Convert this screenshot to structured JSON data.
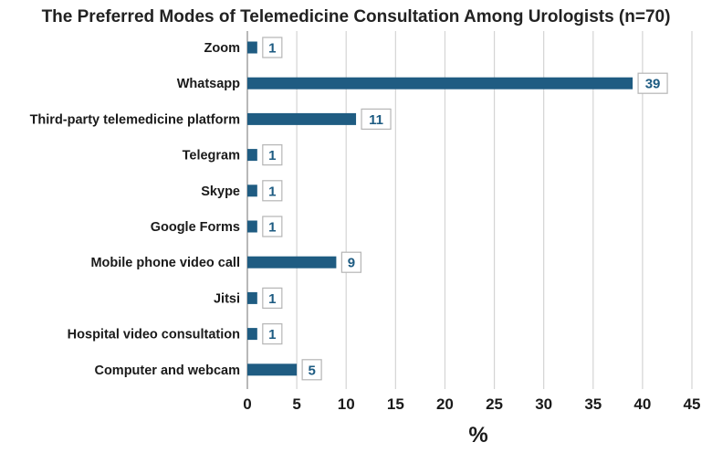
{
  "chart_data": {
    "type": "bar",
    "orientation": "horizontal",
    "title": "The Preferred Modes of Telemedicine Consultation Among Urologists (n=70)",
    "xlabel": "%",
    "ylabel": "",
    "categories": [
      "Zoom",
      "Whatsapp",
      "Third-party telemedicine platform",
      "Telegram",
      "Skype",
      "Google Forms",
      "Mobile phone video call",
      "Jitsi",
      "Hospital video consultation",
      "Computer and webcam"
    ],
    "values": [
      1,
      39,
      11,
      1,
      1,
      1,
      9,
      1,
      1,
      5
    ],
    "data_labels": [
      "1",
      "39",
      "11",
      "1",
      "1",
      "1",
      "9",
      "1",
      "1",
      "5"
    ],
    "xlim": [
      0,
      45
    ],
    "xticks": [
      "0",
      "5",
      "10",
      "15",
      "20",
      "25",
      "30",
      "35",
      "40",
      "45"
    ],
    "grid": "vertical",
    "bar_color": "#1f5c82",
    "label_color": "#1d5b82"
  }
}
